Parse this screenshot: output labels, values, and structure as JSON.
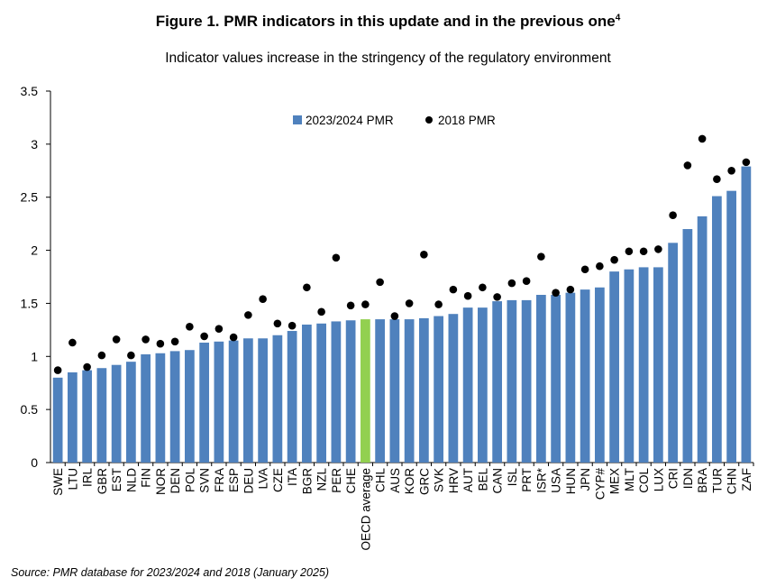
{
  "chart_data": {
    "type": "bar",
    "title": "Figure 1. PMR indicators in this update and in the previous one",
    "title_superscript": "4",
    "subtitle": "Indicator values increase in the stringency of the regulatory environment",
    "xlabel": "",
    "ylabel": "",
    "ylim": [
      0,
      3.5
    ],
    "yticks": [
      "0",
      "0.5",
      "1",
      "1.5",
      "2",
      "2.5",
      "3",
      "3.5"
    ],
    "ytick_values": [
      0,
      0.5,
      1,
      1.5,
      2,
      2.5,
      3,
      3.5
    ],
    "grid": false,
    "legend_position": "top-center",
    "highlight_category": "OECD average",
    "categories": [
      "SWE",
      "LTU",
      "IRL",
      "GBR",
      "EST",
      "NLD",
      "FIN",
      "NOR",
      "DEN",
      "POL",
      "SVN",
      "FRA",
      "ESP",
      "DEU",
      "LVA",
      "CZE",
      "ITA",
      "BGR",
      "NZL",
      "PER",
      "CHE",
      "OECD average",
      "CHL",
      "AUS",
      "KOR",
      "GRC",
      "SVK",
      "HRV",
      "AUT",
      "BEL",
      "CAN",
      "ISL",
      "PRT",
      "ISR*",
      "USA",
      "HUN",
      "JPN",
      "CYP#",
      "MEX",
      "MLT",
      "COL",
      "LUX",
      "CRI",
      "IDN",
      "BRA",
      "TUR",
      "CHN",
      "ZAF"
    ],
    "series": [
      {
        "name": "2023/2024 PMR",
        "type": "bar",
        "color": "#4f81bd",
        "highlight_color": "#92d050",
        "values": [
          0.8,
          0.85,
          0.87,
          0.89,
          0.92,
          0.95,
          1.02,
          1.03,
          1.05,
          1.06,
          1.13,
          1.14,
          1.15,
          1.17,
          1.17,
          1.2,
          1.24,
          1.3,
          1.31,
          1.33,
          1.34,
          1.35,
          1.35,
          1.35,
          1.35,
          1.36,
          1.38,
          1.4,
          1.46,
          1.46,
          1.52,
          1.53,
          1.53,
          1.58,
          1.58,
          1.6,
          1.63,
          1.65,
          1.8,
          1.82,
          1.84,
          1.84,
          2.07,
          2.2,
          2.32,
          2.51,
          2.56,
          2.79
        ]
      },
      {
        "name": "2018 PMR",
        "type": "scatter",
        "color": "#000000",
        "values": [
          0.87,
          1.13,
          0.9,
          1.01,
          1.16,
          1.01,
          1.16,
          1.12,
          1.14,
          1.28,
          1.19,
          1.26,
          1.18,
          1.39,
          1.54,
          1.31,
          1.29,
          1.65,
          1.42,
          1.93,
          1.48,
          1.49,
          1.7,
          1.38,
          1.5,
          1.96,
          1.49,
          1.63,
          1.57,
          1.65,
          1.56,
          1.69,
          1.71,
          1.94,
          1.6,
          1.63,
          1.82,
          1.85,
          1.91,
          1.99,
          1.99,
          2.01,
          2.33,
          2.8,
          3.05,
          2.67,
          2.75,
          2.83
        ]
      }
    ]
  },
  "source": "Source: PMR database for 2023/2024 and 2018 (January 2025)"
}
